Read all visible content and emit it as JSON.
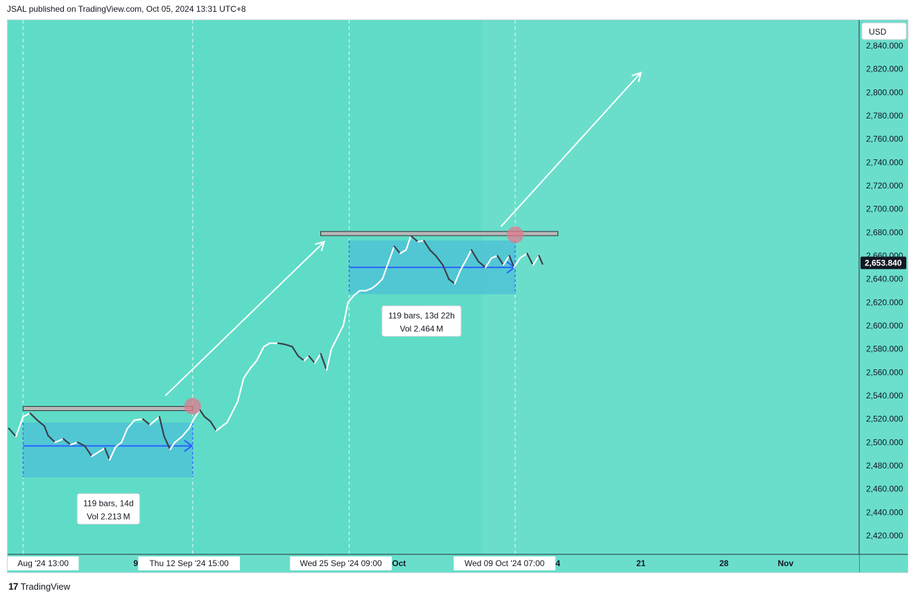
{
  "header": {
    "published": "JSAL published on TradingView.com, Oct 05, 2024 13:31 UTC+8"
  },
  "footer": {
    "logo_mark": "17",
    "brand": "TradingView"
  },
  "colors": {
    "background": "#6adecb",
    "measure_fill": "#4fc3d6",
    "measure_line": "#2962ff",
    "resistance_fill": "#b8b8b8",
    "arrow": "#ffffff",
    "circle": "#e07a8c",
    "last_price_bg": "#131722"
  },
  "chart_data": {
    "type": "candlestick",
    "currency": "USD",
    "y_axis": {
      "ylim": [
        2404,
        2862
      ],
      "ticks": [
        2420,
        2440,
        2460,
        2480,
        2500,
        2520,
        2540,
        2560,
        2580,
        2600,
        2620,
        2640,
        2660,
        2680,
        2700,
        2720,
        2740,
        2760,
        2780,
        2800,
        2820,
        2840
      ],
      "tick_labels": [
        "2,420.000",
        "2,440.000",
        "2,460.000",
        "2,480.000",
        "2,500.000",
        "2,520.000",
        "2,540.000",
        "2,560.000",
        "2,580.000",
        "2,600.000",
        "2,620.000",
        "2,640.000",
        "2,660.000",
        "2,680.000",
        "2,700.000",
        "2,720.000",
        "2,740.000",
        "2,760.000",
        "2,780.000",
        "2,800.000",
        "2,820.000",
        "2,840.000"
      ]
    },
    "x_axis": {
      "labels": [
        {
          "text": "Aug '24   13:00",
          "day": 0,
          "highlight": true
        },
        {
          "text": "9",
          "day": 9.5,
          "highlight": false
        },
        {
          "text": "Thu 12 Sep '24   15:00",
          "day": 14,
          "highlight": true
        },
        {
          "text": "Wed 25 Sep '24   09:00",
          "day": 26.8,
          "highlight": true
        },
        {
          "text": "Oct",
          "day": 31.7,
          "highlight": false
        },
        {
          "text": "Wed 09 Oct '24   07:00",
          "day": 40.6,
          "highlight": true
        },
        {
          "text": "4",
          "day": 45.1,
          "highlight": false
        },
        {
          "text": "21",
          "day": 52.1,
          "highlight": false
        },
        {
          "text": "28",
          "day": 59.1,
          "highlight": false
        },
        {
          "text": "Nov",
          "day": 64.3,
          "highlight": false
        }
      ],
      "day_range": [
        -1.3,
        70.5
      ]
    },
    "last_price": {
      "value": 2653.84,
      "label": "2,653.840"
    },
    "price_path": [
      [
        -1.2,
        2512
      ],
      [
        -0.6,
        2505
      ],
      [
        0,
        2522
      ],
      [
        0.6,
        2525
      ],
      [
        1.2,
        2519
      ],
      [
        1.8,
        2514
      ],
      [
        2.1,
        2506
      ],
      [
        2.7,
        2500
      ],
      [
        3.4,
        2503
      ],
      [
        4.0,
        2498
      ],
      [
        4.6,
        2500
      ],
      [
        5.2,
        2497
      ],
      [
        5.8,
        2488
      ],
      [
        6.4,
        2492
      ],
      [
        6.9,
        2495
      ],
      [
        7.3,
        2485
      ],
      [
        7.8,
        2496
      ],
      [
        8.3,
        2500
      ],
      [
        8.8,
        2512
      ],
      [
        9.4,
        2519
      ],
      [
        10.1,
        2520
      ],
      [
        10.7,
        2515
      ],
      [
        11.5,
        2522
      ],
      [
        11.9,
        2505
      ],
      [
        12.4,
        2494
      ],
      [
        12.8,
        2500
      ],
      [
        13.4,
        2505
      ],
      [
        14.0,
        2512
      ],
      [
        14.4,
        2520
      ],
      [
        14.9,
        2528
      ],
      [
        15.3,
        2522
      ],
      [
        15.8,
        2518
      ],
      [
        16.3,
        2510
      ],
      [
        17.2,
        2517
      ],
      [
        17.7,
        2527
      ],
      [
        18.1,
        2535
      ],
      [
        18.6,
        2555
      ],
      [
        19.2,
        2564
      ],
      [
        19.7,
        2570
      ],
      [
        20.3,
        2582
      ],
      [
        20.8,
        2585
      ],
      [
        21.5,
        2585
      ],
      [
        22.1,
        2584
      ],
      [
        22.7,
        2582
      ],
      [
        23.2,
        2574
      ],
      [
        23.7,
        2570
      ],
      [
        24.1,
        2574
      ],
      [
        24.6,
        2568
      ],
      [
        25.1,
        2576
      ],
      [
        25.6,
        2562
      ],
      [
        26.0,
        2580
      ],
      [
        26.5,
        2590
      ],
      [
        27.0,
        2600
      ],
      [
        27.4,
        2620
      ],
      [
        27.9,
        2626
      ],
      [
        28.4,
        2630
      ],
      [
        28.9,
        2630
      ],
      [
        29.4,
        2632
      ],
      [
        29.8,
        2635
      ],
      [
        30.3,
        2640
      ],
      [
        30.8,
        2654
      ],
      [
        31.3,
        2668
      ],
      [
        31.8,
        2662
      ],
      [
        32.3,
        2665
      ],
      [
        32.7,
        2677
      ],
      [
        33.3,
        2672
      ],
      [
        33.8,
        2673
      ],
      [
        34.3,
        2665
      ],
      [
        34.8,
        2660
      ],
      [
        35.4,
        2652
      ],
      [
        35.9,
        2640
      ],
      [
        36.4,
        2636
      ],
      [
        36.9,
        2648
      ],
      [
        37.4,
        2657
      ],
      [
        37.8,
        2665
      ],
      [
        38.4,
        2655
      ],
      [
        39.0,
        2650
      ],
      [
        39.5,
        2658
      ],
      [
        40.0,
        2660
      ],
      [
        40.5,
        2652
      ],
      [
        41.0,
        2660
      ],
      [
        41.4,
        2650
      ],
      [
        41.9,
        2658
      ],
      [
        42.5,
        2662
      ],
      [
        43.0,
        2652
      ],
      [
        43.5,
        2660
      ],
      [
        43.8,
        2653
      ]
    ],
    "zones": [
      {
        "x_start": 0,
        "x_end": 14.3,
        "y_low": 2470,
        "y_high": 2517,
        "range_mid": 2497,
        "resistance": 2529,
        "resistance_x": [
          0,
          14.3
        ],
        "breakout_circle": [
          14.3,
          2531
        ],
        "label_line1": "119 bars, 14d",
        "label_line2": "Vol 2.213 M",
        "label_day": 7.2,
        "label_price": 2443
      },
      {
        "x_start": 27.5,
        "x_end": 41.5,
        "y_low": 2627,
        "y_high": 2673,
        "range_mid": 2650,
        "resistance": 2679,
        "resistance_x": [
          25.1,
          45.1
        ],
        "breakout_circle": [
          41.5,
          2678
        ],
        "label_line1": "119 bars, 13d 22h",
        "label_line2": "Vol 2.464 M",
        "label_day": 33.6,
        "label_price": 2604
      }
    ],
    "projection_arrows": [
      {
        "from": [
          12.0,
          2540
        ],
        "to": [
          25.4,
          2672
        ]
      },
      {
        "from": [
          40.3,
          2685
        ],
        "to": [
          52.1,
          2817
        ]
      }
    ],
    "dashed_verticals": [
      0,
      14.3,
      27.5,
      41.5
    ],
    "highlight_band": [
      -1.3,
      38.7
    ]
  }
}
